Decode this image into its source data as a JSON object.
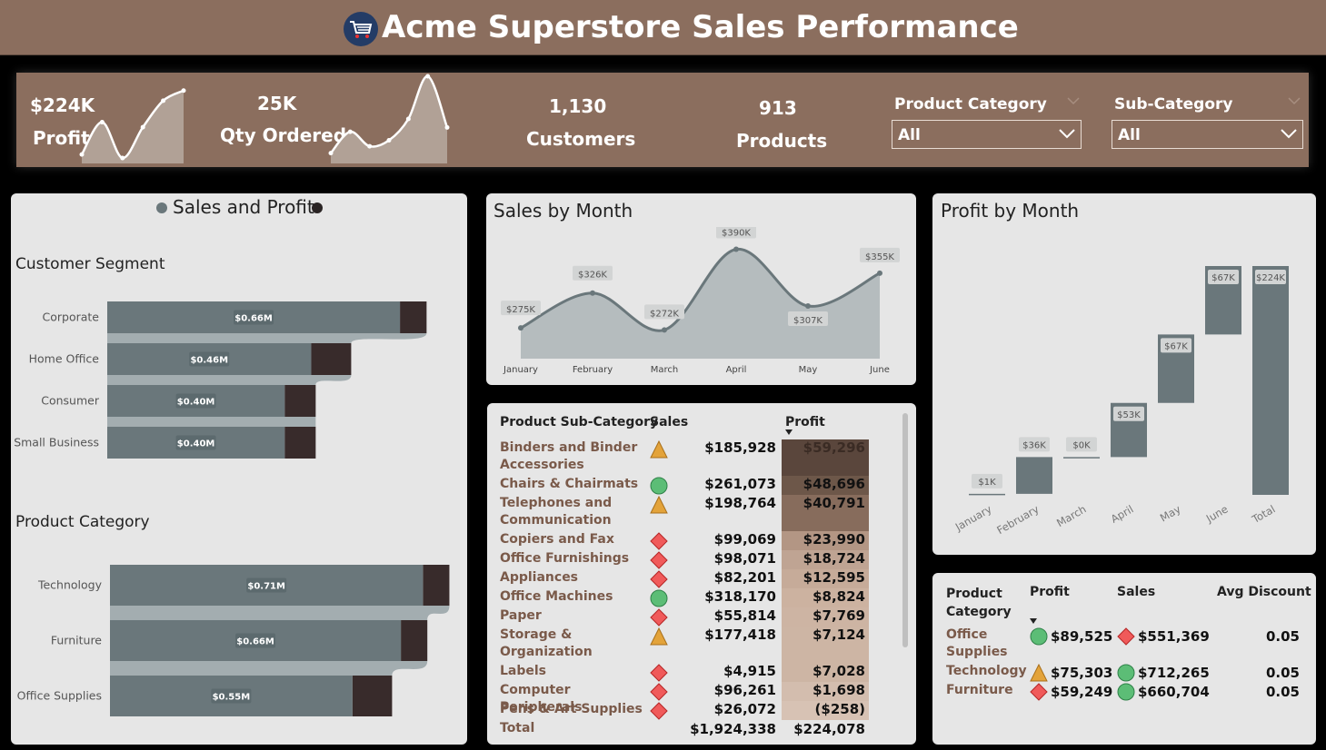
{
  "header": {
    "title": "Acme Superstore Sales Performance",
    "logo_icon": "shopping-cart-icon"
  },
  "kpis": {
    "profit": {
      "value": "$224K",
      "label": "Profit"
    },
    "qty": {
      "value": "25K",
      "label": "Qty Ordered"
    },
    "customers": {
      "value": "1,130",
      "label": "Customers"
    },
    "products": {
      "value": "913",
      "label": "Products"
    }
  },
  "slicers": {
    "category": {
      "label": "Product Category",
      "value": "All"
    },
    "subcategory": {
      "label": "Sub-Category",
      "value": "All"
    }
  },
  "sales_profit": {
    "title": "Sales and Profit",
    "segment_title": "Customer Segment",
    "category_title": "Product Category"
  },
  "sales_month_title": "Sales by Month",
  "profit_month_title": "Profit by Month",
  "colors": {
    "brown": "#8b6e5e",
    "bar": "#6a777b",
    "dark": "#3a2e2e",
    "panel": "#e6e6e6"
  },
  "chart_data": [
    {
      "type": "bar",
      "title": "Customer Segment",
      "categories": [
        "Corporate",
        "Home Office",
        "Consumer",
        "Small Business"
      ],
      "values": [
        0.66,
        0.46,
        0.4,
        0.4
      ],
      "data_labels": [
        "$0.66M",
        "$0.46M",
        "$0.40M",
        "$0.40M"
      ],
      "secondary": [
        0.72,
        0.55,
        0.47,
        0.47
      ]
    },
    {
      "type": "bar",
      "title": "Product Category",
      "categories": [
        "Technology",
        "Furniture",
        "Office Supplies"
      ],
      "values": [
        0.71,
        0.66,
        0.55
      ],
      "data_labels": [
        "$0.71M",
        "$0.66M",
        "$0.55M"
      ],
      "secondary": [
        0.77,
        0.72,
        0.64
      ]
    },
    {
      "type": "area",
      "title": "Sales by Month",
      "categories": [
        "January",
        "February",
        "March",
        "April",
        "May",
        "June"
      ],
      "values": [
        275,
        326,
        272,
        390,
        307,
        355
      ],
      "data_labels": [
        "$275K",
        "$326K",
        "$272K",
        "$390K",
        "$307K",
        "$355K"
      ],
      "ylim": [
        230,
        400
      ]
    },
    {
      "type": "bar",
      "title": "Profit by Month",
      "categories": [
        "January",
        "February",
        "March",
        "April",
        "May",
        "June",
        "Total"
      ],
      "values": [
        1,
        36,
        0,
        53,
        67,
        67,
        224
      ],
      "data_labels": [
        "$1K",
        "$36K",
        "$0K",
        "$53K",
        "$67K",
        "$67K",
        "$224K"
      ],
      "ylim": [
        0,
        240
      ]
    }
  ],
  "kpi_sparklines": {
    "profit": [
      10,
      55,
      5,
      48,
      85,
      99
    ],
    "qty": [
      10,
      35,
      18,
      25,
      50,
      100,
      40
    ]
  },
  "subcat_table": {
    "headers": {
      "name": "Product Sub-Category",
      "sales": "Sales",
      "profit": "Profit"
    },
    "rows": [
      {
        "name": "Binders and Binder Accessories",
        "icon": "triangle",
        "sales": "$185,928",
        "profit": "$59,296",
        "shade": "#5a463c",
        "lines": 2,
        "light": true
      },
      {
        "name": "Chairs & Chairmats",
        "icon": "circle",
        "sales": "$261,073",
        "profit": "$48,696",
        "shade": "#6d5749",
        "lines": 1,
        "light": false
      },
      {
        "name": "Telephones and Communication",
        "icon": "triangle",
        "sales": "$198,764",
        "profit": "$40,791",
        "shade": "#876c5c",
        "lines": 2,
        "light": false
      },
      {
        "name": "Copiers and Fax",
        "icon": "diamond",
        "sales": "$99,069",
        "profit": "$23,990",
        "shade": "#b39684",
        "lines": 1,
        "light": false
      },
      {
        "name": "Office Furnishings",
        "icon": "diamond",
        "sales": "$98,071",
        "profit": "$18,724",
        "shade": "#bfa493",
        "lines": 1,
        "light": false
      },
      {
        "name": "Appliances",
        "icon": "diamond",
        "sales": "$82,201",
        "profit": "$12,595",
        "shade": "#c6ab99",
        "lines": 1,
        "light": false
      },
      {
        "name": "Office Machines",
        "icon": "circle",
        "sales": "$318,170",
        "profit": "$8,824",
        "shade": "#ccb2a0",
        "lines": 1,
        "light": false
      },
      {
        "name": "Paper",
        "icon": "diamond",
        "sales": "$55,814",
        "profit": "$7,769",
        "shade": "#cdb4a3",
        "lines": 1,
        "light": false
      },
      {
        "name": "Storage & Organization",
        "icon": "triangle",
        "sales": "$177,418",
        "profit": "$7,124",
        "shade": "#cdb5a4",
        "lines": 2,
        "light": false
      },
      {
        "name": "Labels",
        "icon": "diamond",
        "sales": "$4,915",
        "profit": "$7,028",
        "shade": "#cdb5a4",
        "lines": 1,
        "light": false
      },
      {
        "name": "Computer Peripherals",
        "icon": "diamond",
        "sales": "$96,261",
        "profit": "$1,698",
        "shade": "#d3bdae",
        "lines": 1,
        "light": false
      },
      {
        "name": "Pens & Art Supplies",
        "icon": "diamond",
        "sales": "$26,072",
        "profit": "($258)",
        "shade": "#d7c2b4",
        "lines": 1,
        "light": false
      }
    ],
    "total": {
      "label": "Total",
      "sales": "$1,924,338",
      "profit": "$224,078"
    }
  },
  "cat_table": {
    "headers": {
      "category": "Product Category",
      "profit": "Profit",
      "sales": "Sales",
      "discount": "Avg Discount"
    },
    "rows": [
      {
        "category": "Office Supplies",
        "profit_icon": "circle",
        "profit": "$89,525",
        "sales_icon": "diamond",
        "sales": "$551,369",
        "discount": "0.05"
      },
      {
        "category": "Technology",
        "profit_icon": "triangle",
        "profit": "$75,303",
        "sales_icon": "circle",
        "sales": "$712,265",
        "discount": "0.05"
      },
      {
        "category": "Furniture",
        "profit_icon": "diamond",
        "profit": "$59,249",
        "sales_icon": "circle",
        "sales": "$660,704",
        "discount": "0.05"
      }
    ]
  }
}
